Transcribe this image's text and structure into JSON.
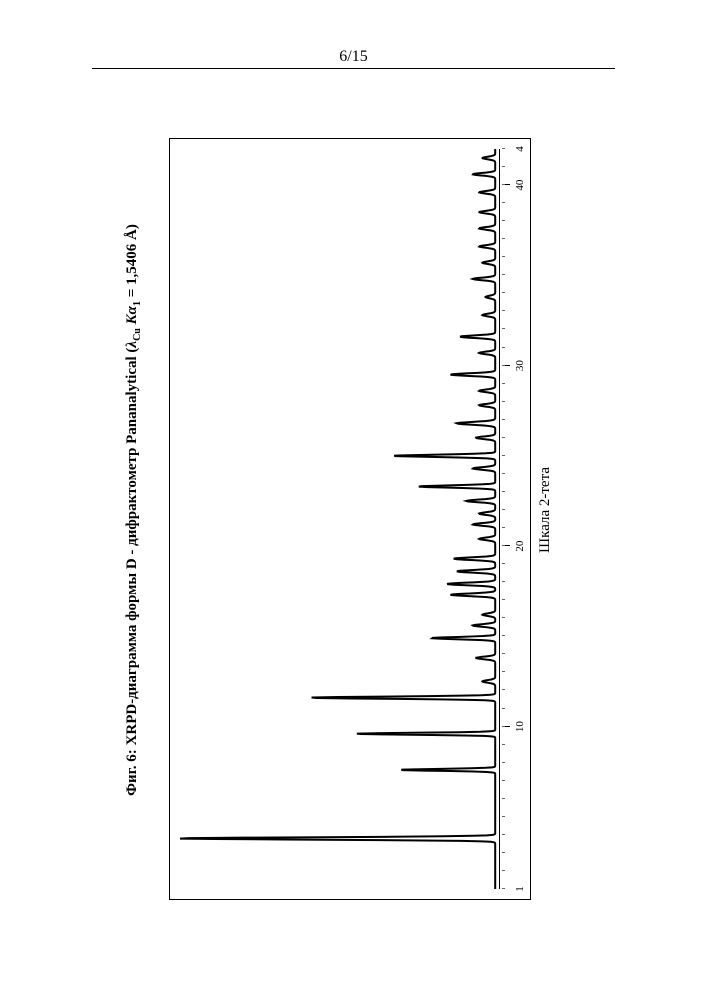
{
  "page_label": "6/15",
  "caption": {
    "prefix": "Фиг. 6: XRPD-диаграмма формы D - дифрактометр Pananalytical (",
    "lambda_sym": "λ",
    "lambda_sub": "Cu",
    "k": "K",
    "alpha": "α",
    "alpha_sub": "1",
    "eq": " = 1,5406 ",
    "angstrom": "Å",
    "suffix": ")"
  },
  "chart": {
    "type": "line",
    "xlabel": "Шкала 2-тета",
    "xlim": [
      1,
      42
    ],
    "x_major_ticks": [
      10,
      20,
      30,
      40
    ],
    "x_major_labels": [
      "10",
      "20",
      "30",
      "40"
    ],
    "x_end_labels": {
      "start": "1",
      "end": "4"
    },
    "x_minor_step": 1,
    "line_color": "#000000",
    "line_width": 0.7,
    "background_color": "#ffffff",
    "border_color": "#000000",
    "peaks": [
      {
        "x": 3.8,
        "h": 1.0,
        "w": 0.18
      },
      {
        "x": 7.6,
        "h": 0.3,
        "w": 0.15
      },
      {
        "x": 9.6,
        "h": 0.44,
        "w": 0.15
      },
      {
        "x": 11.6,
        "h": 0.58,
        "w": 0.17
      },
      {
        "x": 12.5,
        "h": 0.04,
        "w": 0.2
      },
      {
        "x": 13.8,
        "h": 0.06,
        "w": 0.2
      },
      {
        "x": 14.9,
        "h": 0.2,
        "w": 0.18
      },
      {
        "x": 15.6,
        "h": 0.07,
        "w": 0.2
      },
      {
        "x": 16.2,
        "h": 0.04,
        "w": 0.2
      },
      {
        "x": 17.3,
        "h": 0.14,
        "w": 0.2
      },
      {
        "x": 17.9,
        "h": 0.15,
        "w": 0.2
      },
      {
        "x": 18.6,
        "h": 0.12,
        "w": 0.2
      },
      {
        "x": 19.3,
        "h": 0.13,
        "w": 0.2
      },
      {
        "x": 20.4,
        "h": 0.05,
        "w": 0.2
      },
      {
        "x": 21.2,
        "h": 0.07,
        "w": 0.2
      },
      {
        "x": 21.8,
        "h": 0.05,
        "w": 0.2
      },
      {
        "x": 22.5,
        "h": 0.09,
        "w": 0.2
      },
      {
        "x": 23.3,
        "h": 0.24,
        "w": 0.18
      },
      {
        "x": 24.3,
        "h": 0.07,
        "w": 0.2
      },
      {
        "x": 25.0,
        "h": 0.32,
        "w": 0.18
      },
      {
        "x": 26.0,
        "h": 0.06,
        "w": 0.2
      },
      {
        "x": 26.8,
        "h": 0.12,
        "w": 0.22
      },
      {
        "x": 27.8,
        "h": 0.05,
        "w": 0.2
      },
      {
        "x": 28.6,
        "h": 0.05,
        "w": 0.2
      },
      {
        "x": 29.5,
        "h": 0.14,
        "w": 0.2
      },
      {
        "x": 30.7,
        "h": 0.05,
        "w": 0.2
      },
      {
        "x": 31.6,
        "h": 0.11,
        "w": 0.2
      },
      {
        "x": 32.8,
        "h": 0.04,
        "w": 0.2
      },
      {
        "x": 33.8,
        "h": 0.03,
        "w": 0.2
      },
      {
        "x": 34.8,
        "h": 0.07,
        "w": 0.2
      },
      {
        "x": 35.7,
        "h": 0.04,
        "w": 0.2
      },
      {
        "x": 36.6,
        "h": 0.05,
        "w": 0.2
      },
      {
        "x": 37.6,
        "h": 0.05,
        "w": 0.2
      },
      {
        "x": 38.5,
        "h": 0.05,
        "w": 0.2
      },
      {
        "x": 39.6,
        "h": 0.05,
        "w": 0.2
      },
      {
        "x": 40.6,
        "h": 0.07,
        "w": 0.2
      },
      {
        "x": 41.5,
        "h": 0.04,
        "w": 0.2
      }
    ],
    "baseline": 0.015
  }
}
